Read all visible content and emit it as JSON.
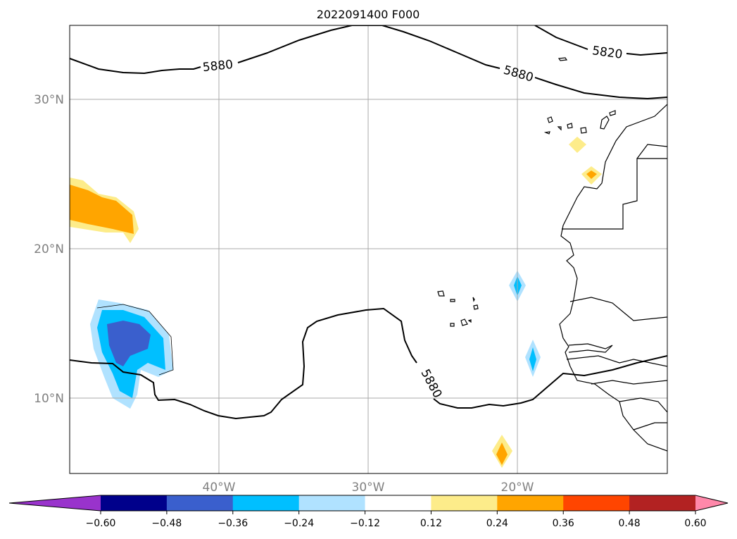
{
  "title": "2022091400 F000",
  "lat_labels": [
    "30°N",
    "20°N",
    "10°N"
  ],
  "lon_labels": [
    "40°W",
    "30°W",
    "20°W"
  ],
  "contour_labels": [
    "5880",
    "5880",
    "5880",
    "5820"
  ],
  "colorbar": {
    "ticks": [
      "−0.60",
      "−0.48",
      "−0.36",
      "−0.24",
      "−0.12",
      "0.12",
      "0.24",
      "0.36",
      "0.48",
      "0.60"
    ],
    "colors": [
      "#9933cc",
      "#00008b",
      "#3a5fcd",
      "#00bfff",
      "#b0e2ff",
      "#ffffff",
      "#fdec8a",
      "#ffa500",
      "#ff4500",
      "#b22222",
      "#ff88aa"
    ]
  }
}
